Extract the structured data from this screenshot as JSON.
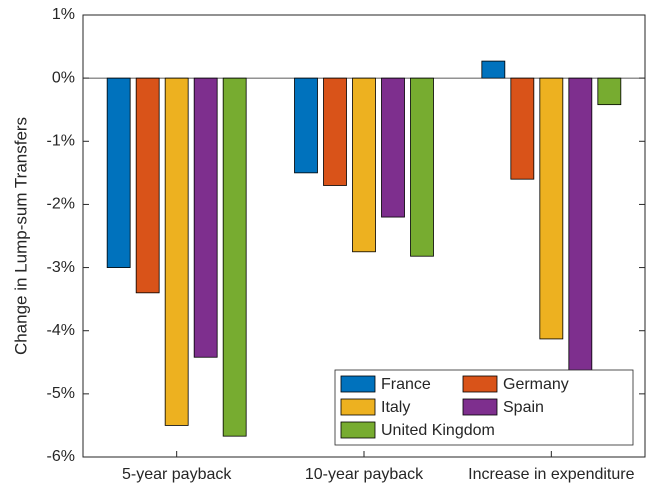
{
  "chart_data": {
    "type": "bar",
    "ylabel": "Change in Lump-sum Transfers",
    "categories": [
      "5-year payback",
      "10-year payback",
      "Increase in expenditure"
    ],
    "series": [
      {
        "name": "France",
        "color": "#0072BD",
        "values": [
          -3.0,
          -1.5,
          0.27
        ]
      },
      {
        "name": "Germany",
        "color": "#D95319",
        "values": [
          -3.4,
          -1.7,
          -1.6
        ]
      },
      {
        "name": "Italy",
        "color": "#EDB120",
        "values": [
          -5.5,
          -2.75,
          -4.13
        ]
      },
      {
        "name": "Spain",
        "color": "#7E2F8E",
        "values": [
          -4.42,
          -2.2,
          -5.0
        ]
      },
      {
        "name": "United Kingdom",
        "color": "#77AC30",
        "values": [
          -5.67,
          -2.82,
          -0.42
        ]
      }
    ],
    "ylim": [
      -6,
      1
    ],
    "yticks": [
      {
        "value": -6,
        "label": "-6%"
      },
      {
        "value": -5,
        "label": "-5%"
      },
      {
        "value": -4,
        "label": "-4%"
      },
      {
        "value": -3,
        "label": "-3%"
      },
      {
        "value": -2,
        "label": "-2%"
      },
      {
        "value": -1,
        "label": "-1%"
      },
      {
        "value": 0,
        "label": "0%"
      },
      {
        "value": 1,
        "label": "1%"
      }
    ],
    "grid": false,
    "legend": "lower right"
  }
}
